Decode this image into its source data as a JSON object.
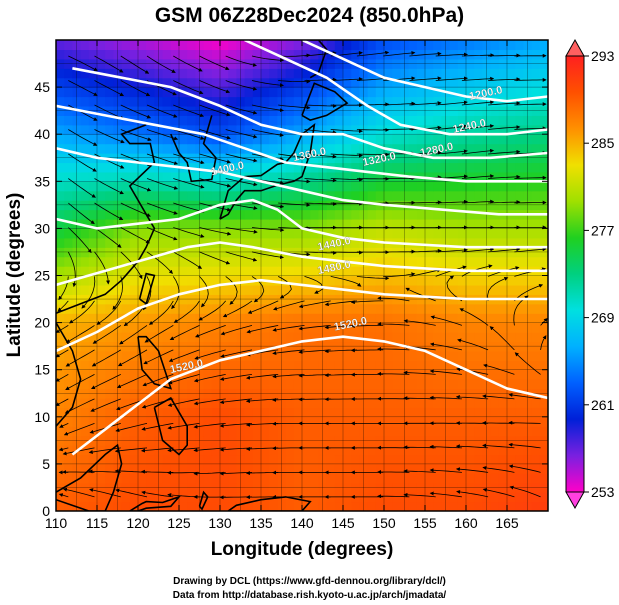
{
  "chart_data": {
    "type": "heatmap",
    "title": "GSM 06Z28Dec2024 (850.0hPa)",
    "xlabel": "Longitude (degrees)",
    "ylabel": "Latitude  (degrees)",
    "xlim": [
      110,
      170
    ],
    "ylim": [
      0,
      50
    ],
    "x_ticks": [
      110,
      115,
      120,
      125,
      130,
      135,
      140,
      145,
      150,
      155,
      160,
      165
    ],
    "y_ticks": [
      0,
      5,
      10,
      15,
      20,
      25,
      30,
      35,
      40,
      45
    ],
    "colorbar": {
      "range": [
        253,
        293
      ],
      "ticks": [
        253,
        261,
        269,
        277,
        285,
        293
      ],
      "colors": [
        "#ff00c8",
        "#7a20e0",
        "#0020d8",
        "#0060ff",
        "#00b0ff",
        "#00e0e0",
        "#00d080",
        "#20d020",
        "#a0e000",
        "#f0e000",
        "#ff9000",
        "#ff5000",
        "#ff2020"
      ]
    },
    "temperature_field": {
      "lon": [
        110,
        120,
        130,
        140,
        150,
        160,
        170
      ],
      "lat": [
        0,
        10,
        20,
        30,
        40,
        50
      ],
      "values": [
        [
          289,
          290,
          290,
          289,
          290,
          290,
          291
        ],
        [
          287,
          289,
          290,
          289,
          289,
          289,
          289
        ],
        [
          285,
          286,
          287,
          288,
          288,
          287,
          287
        ],
        [
          275,
          279,
          279,
          279,
          281,
          280,
          280
        ],
        [
          266,
          264,
          262,
          266,
          270,
          272,
          273
        ],
        [
          257,
          255,
          253,
          256,
          262,
          264,
          266
        ]
      ]
    },
    "contour_labels": [
      {
        "text": "1200.0",
        "lon": 162.5,
        "lat": 44.0
      },
      {
        "text": "1240.0",
        "lon": 160.5,
        "lat": 40.5
      },
      {
        "text": "1280.0",
        "lon": 156.5,
        "lat": 38.0
      },
      {
        "text": "1320.0",
        "lon": 149.5,
        "lat": 37.0
      },
      {
        "text": "1360.0",
        "lon": 141.0,
        "lat": 37.5
      },
      {
        "text": "1400.0",
        "lon": 131.0,
        "lat": 36.0
      },
      {
        "text": "1440.0",
        "lon": 144.0,
        "lat": 28.0
      },
      {
        "text": "1480.0",
        "lon": 144.0,
        "lat": 25.5
      },
      {
        "text": "1520.0",
        "lon": 146.0,
        "lat": 19.5
      },
      {
        "text": "1520.0",
        "lon": 126.0,
        "lat": 15.0
      }
    ],
    "contour_lines": [
      {
        "level": "1200.0",
        "lon": [
          140,
          145,
          150,
          155,
          160,
          165,
          170
        ],
        "lat": [
          50,
          48,
          46,
          45,
          44,
          43.5,
          44
        ]
      },
      {
        "level": "1240.0",
        "lon": [
          133,
          138,
          143,
          148,
          152,
          158,
          165,
          170
        ],
        "lat": [
          50,
          48,
          46,
          43,
          41,
          40,
          40,
          40.5
        ]
      },
      {
        "level": "1280.0",
        "lon": [
          112,
          118,
          124,
          130,
          135,
          140,
          145,
          150,
          156,
          163,
          170
        ],
        "lat": [
          47,
          46,
          45,
          43,
          41,
          40,
          40,
          38.5,
          37.5,
          37.5,
          38
        ]
      },
      {
        "level": "1320.0",
        "lon": [
          110,
          116,
          122,
          128,
          133,
          138,
          143,
          148,
          153,
          160,
          170
        ],
        "lat": [
          43,
          42,
          41,
          40,
          38.5,
          37,
          36.5,
          36,
          35.5,
          35,
          35
        ]
      },
      {
        "level": "1360.0",
        "lon": [
          110,
          115,
          120,
          125,
          130,
          135,
          140,
          145,
          150,
          157,
          164,
          170
        ],
        "lat": [
          38.5,
          37.5,
          37,
          36.5,
          36,
          35,
          34,
          33,
          32.5,
          32,
          31.5,
          31.5
        ]
      },
      {
        "level": "1400.0",
        "lon": [
          110,
          115,
          120,
          125,
          130,
          134,
          137,
          140,
          145,
          150,
          160,
          170
        ],
        "lat": [
          31,
          30,
          30.5,
          31,
          32.5,
          33,
          32,
          30,
          29,
          28.5,
          28,
          28
        ]
      },
      {
        "level": "1440.0",
        "lon": [
          110,
          114,
          118,
          122,
          126,
          130,
          134,
          140,
          145,
          150,
          160,
          170
        ],
        "lat": [
          24,
          25,
          26,
          27,
          28,
          28.5,
          28,
          27,
          26.5,
          26,
          25.5,
          25.5
        ]
      },
      {
        "level": "1480.0",
        "lon": [
          110,
          115,
          120,
          125,
          130,
          135,
          140,
          145,
          150,
          160,
          170
        ],
        "lat": [
          17,
          19,
          21.5,
          23,
          24,
          24.5,
          24,
          23.5,
          23,
          22.5,
          22.5
        ]
      },
      {
        "level": "1520.0",
        "lon": [
          112,
          118,
          124,
          130,
          135,
          140,
          145,
          150,
          155,
          160,
          165,
          170
        ],
        "lat": [
          6,
          10,
          14,
          16,
          17,
          18,
          18.5,
          18,
          17,
          15,
          13,
          12
        ]
      }
    ],
    "wind_field": {
      "lon": [
        110,
        120,
        130,
        140,
        150,
        160,
        170
      ],
      "lat": [
        0,
        10,
        20,
        30,
        40,
        50
      ],
      "u": [
        [
          -4,
          -6,
          -8,
          -6,
          -6,
          -6,
          -4
        ],
        [
          -6,
          -8,
          -10,
          -10,
          -10,
          -8,
          -6
        ],
        [
          -8,
          -6,
          -6,
          -8,
          -8,
          -6,
          4
        ],
        [
          6,
          10,
          12,
          12,
          12,
          10,
          10
        ],
        [
          10,
          14,
          16,
          18,
          18,
          16,
          14
        ],
        [
          12,
          12,
          14,
          16,
          16,
          12,
          10
        ]
      ],
      "v": [
        [
          2,
          2,
          0,
          0,
          0,
          1,
          2
        ],
        [
          -3,
          -2,
          -1,
          0,
          0,
          0,
          0
        ],
        [
          -4,
          -4,
          -2,
          -1,
          0,
          2,
          3
        ],
        [
          -6,
          -4,
          -2,
          0,
          0,
          0,
          0
        ],
        [
          -6,
          -4,
          -4,
          -2,
          0,
          2,
          0
        ],
        [
          -4,
          -8,
          -6,
          2,
          2,
          0,
          0
        ]
      ]
    },
    "coastlines": [
      {
        "name": "indochina",
        "lon": [
          110,
          112,
          113,
          112,
          110
        ],
        "lat": [
          20,
          17,
          14,
          11,
          9
        ]
      },
      {
        "name": "china-coast",
        "lon": [
          110,
          113,
          116,
          118,
          120,
          121,
          122,
          121,
          120,
          119,
          122,
          121.5,
          119,
          118,
          121
        ],
        "lat": [
          21,
          22,
          23,
          24.5,
          26.5,
          28,
          30,
          31.5,
          33,
          34.5,
          37,
          39,
          39,
          40,
          41
        ]
      },
      {
        "name": "korea",
        "lon": [
          124,
          125,
          126,
          126.5,
          129,
          129.5,
          128,
          129
        ],
        "lat": [
          40,
          38,
          37,
          35,
          35.2,
          37.5,
          39,
          42
        ]
      },
      {
        "name": "japan",
        "lon": [
          130,
          131,
          132,
          133,
          135,
          137,
          139,
          140,
          141,
          141.5,
          140,
          139,
          138,
          137,
          135,
          133,
          131,
          130
        ],
        "lat": [
          31,
          31.5,
          33,
          34,
          34,
          34.6,
          35,
          35.5,
          38,
          41,
          40,
          38,
          37,
          36.8,
          35.6,
          35.5,
          34,
          31
        ]
      },
      {
        "name": "hokkaido",
        "lon": [
          140,
          141,
          143,
          145.5,
          144,
          141.5,
          140
        ],
        "lat": [
          42,
          41.5,
          42,
          43.3,
          44.5,
          45.4,
          42
        ]
      },
      {
        "name": "sakhalin-russia",
        "lon": [
          141,
          142,
          143,
          142,
          141
        ],
        "lat": [
          46,
          46.5,
          49,
          50,
          50
        ]
      },
      {
        "name": "taiwan",
        "lon": [
          120.2,
          121,
          122,
          121,
          120.2
        ],
        "lat": [
          22.5,
          22,
          25,
          25.2,
          22.5
        ]
      },
      {
        "name": "luzon",
        "lon": [
          120,
          121,
          122.5,
          124,
          122,
          120.5,
          120
        ],
        "lat": [
          18.5,
          18.5,
          17,
          13,
          13.5,
          15,
          18.5
        ]
      },
      {
        "name": "visayas-mindanao",
        "lon": [
          122,
          124,
          126,
          126,
          125,
          123,
          122
        ],
        "lat": [
          11,
          12,
          9,
          7,
          6,
          7.5,
          11
        ]
      },
      {
        "name": "borneo",
        "lon": [
          110,
          113,
          116,
          117.5,
          118,
          117,
          116,
          114,
          110
        ],
        "lat": [
          2,
          3.5,
          6,
          7,
          5,
          2,
          0,
          0,
          1.2
        ]
      },
      {
        "name": "sulawesi",
        "lon": [
          119,
          120.5,
          121,
          123,
          125,
          124,
          121,
          120,
          119
        ],
        "lat": [
          0,
          0.8,
          1,
          0.9,
          1.5,
          0.5,
          0.3,
          0,
          0
        ]
      },
      {
        "name": "halmahera",
        "lon": [
          127.5,
          128,
          128.5,
          127.8,
          127.5
        ],
        "lat": [
          0.5,
          2,
          1.5,
          0.2,
          0.5
        ]
      },
      {
        "name": "new-guinea",
        "lon": [
          131,
          134,
          137,
          140,
          141,
          138,
          135,
          132,
          131
        ],
        "lat": [
          0,
          0,
          0,
          0,
          1,
          1.5,
          1.2,
          0.6,
          0
        ]
      }
    ]
  },
  "credits": {
    "line1": "Drawing by DCL (https://www.gfd-dennou.org/library/dcl/)",
    "line2": "Data from http://database.rish.kyoto-u.ac.jp/arch/jmadata/"
  }
}
